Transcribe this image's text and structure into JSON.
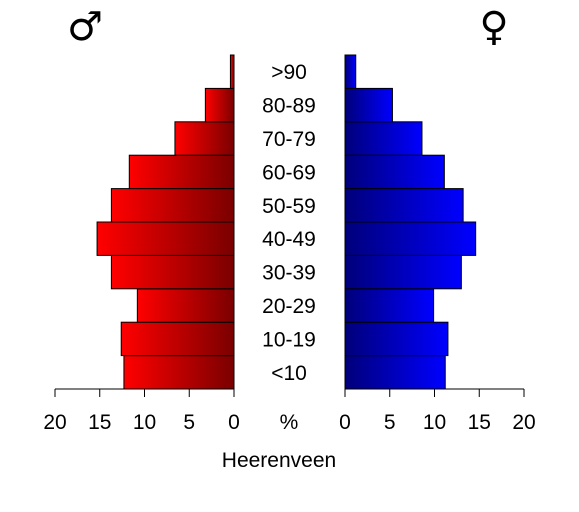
{
  "chart_data": {
    "type": "bar",
    "subtype": "population-pyramid",
    "orientation": "horizontal",
    "categories": [
      "<10",
      "10-19",
      "20-29",
      "30-39",
      "40-49",
      "50-59",
      "60-69",
      "70-79",
      "80-89",
      ">90"
    ],
    "series": [
      {
        "name": "♂",
        "side": "left",
        "color_dark": "#7a0000",
        "color_light": "#ff0000",
        "values": [
          12.3,
          12.6,
          10.8,
          13.7,
          15.3,
          13.7,
          11.7,
          6.6,
          3.2,
          0.4
        ]
      },
      {
        "name": "♀",
        "side": "right",
        "color_dark": "#00007a",
        "color_light": "#0000ff",
        "values": [
          11.2,
          11.5,
          9.9,
          13.0,
          14.6,
          13.2,
          11.1,
          8.6,
          5.3,
          1.2
        ]
      }
    ],
    "xlim": [
      0,
      20
    ],
    "x_ticks": [
      "20",
      "15",
      "10",
      "5",
      "0"
    ],
    "x_ticks_right": [
      "0",
      "5",
      "10",
      "15",
      "20"
    ],
    "center_axis_label": "%",
    "xlabel": "Heerenveen",
    "title": "",
    "grid": false
  }
}
